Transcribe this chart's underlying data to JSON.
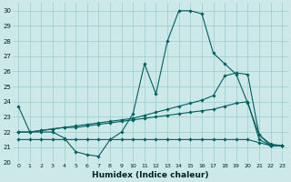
{
  "xlabel": "Humidex (Indice chaleur)",
  "bg_color": "#cce8e8",
  "grid_color": "#99cccc",
  "line_color": "#006060",
  "xlim": [
    -0.5,
    23.5
  ],
  "ylim": [
    20,
    30.5
  ],
  "xticks": [
    0,
    1,
    2,
    3,
    4,
    5,
    6,
    7,
    8,
    9,
    10,
    11,
    12,
    13,
    14,
    15,
    16,
    17,
    18,
    19,
    20,
    21,
    22,
    23
  ],
  "yticks": [
    20,
    21,
    22,
    23,
    24,
    25,
    26,
    27,
    28,
    29,
    30
  ],
  "series": {
    "line1": [
      23.7,
      22.0,
      22.0,
      22.0,
      21.6,
      20.7,
      20.5,
      20.4,
      21.5,
      22.0,
      23.2,
      26.5,
      24.5,
      28.0,
      30.0,
      30.0,
      29.8,
      27.2,
      26.5,
      25.8,
      23.9,
      21.8,
      21.1,
      21.1
    ],
    "line2": [
      22.0,
      22.0,
      22.1,
      22.2,
      22.3,
      22.4,
      22.5,
      22.6,
      22.7,
      22.8,
      22.9,
      23.1,
      23.3,
      23.5,
      23.7,
      23.9,
      24.1,
      24.4,
      25.7,
      25.9,
      25.8,
      21.8,
      21.2,
      21.1
    ],
    "line3": [
      22.0,
      22.0,
      22.1,
      22.2,
      22.3,
      22.3,
      22.4,
      22.5,
      22.6,
      22.7,
      22.8,
      22.9,
      23.0,
      23.1,
      23.2,
      23.3,
      23.4,
      23.5,
      23.7,
      23.9,
      24.0,
      21.5,
      21.1,
      21.1
    ],
    "line4": [
      21.5,
      21.5,
      21.5,
      21.5,
      21.5,
      21.5,
      21.5,
      21.5,
      21.5,
      21.5,
      21.5,
      21.5,
      21.5,
      21.5,
      21.5,
      21.5,
      21.5,
      21.5,
      21.5,
      21.5,
      21.5,
      21.3,
      21.1,
      21.1
    ]
  }
}
